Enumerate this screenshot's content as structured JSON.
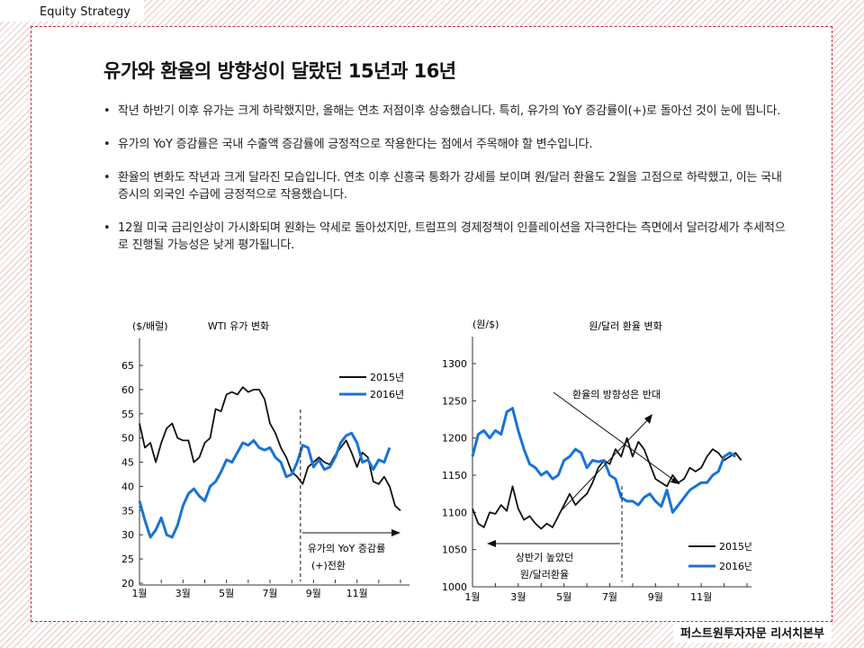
{
  "header": {
    "section": "Equity Strategy"
  },
  "footer": {
    "company": "퍼스트원투자자문 리서치본부"
  },
  "title": "유가와 환율의 방향성이 달랐던 15년과 16년",
  "bullets": [
    "작년 하반기 이후 유가는 크게 하락했지만, 올해는 연초 저점이후 상승했습니다. 특히, 유가의 YoY 증감률이(+)로 돌아선 것이 눈에 띕니다.",
    "유가의 YoY 증감률은 국내 수출액 증감률에 긍정적으로 작용한다는 점에서 주목해야 할 변수입니다.",
    "환율의 변화도 작년과 크게 달라진 모습입니다. 연초 이후 신흥국 통화가 강세를 보이며 원/달러 환율도 2월을 고점으로 하락했고, 이는 국내증시의 외국인 수급에 긍정적으로 작용했습니다.",
    "12월 미국 금리인상이 가시화되며 원화는 약세로 돌아섰지만, 트럼프의 경제정책이 인플레이션을 자극한다는 측면에서 달러강세가 추세적으로 진행될 가능성은 낮게 평가됩니다."
  ],
  "chart_data": [
    {
      "type": "line",
      "title": "WTI 유가 변화",
      "ylabel": "($/배럴)",
      "ylim": [
        20,
        65
      ],
      "yticks": [
        20,
        25,
        30,
        35,
        40,
        45,
        50,
        55,
        60,
        65
      ],
      "xticks": [
        "1월",
        "3월",
        "5월",
        "7월",
        "9월",
        "11월"
      ],
      "xlim": [
        0,
        12
      ],
      "annotation": {
        "line1": "유가의 YoY 증감률",
        "line2": "(+)전환",
        "x": 7.4
      },
      "series": [
        {
          "name": "2015년",
          "color": "#111111",
          "x": [
            0,
            0.25,
            0.5,
            0.75,
            1,
            1.25,
            1.5,
            1.75,
            2,
            2.25,
            2.5,
            2.75,
            3,
            3.25,
            3.5,
            3.75,
            4,
            4.25,
            4.5,
            4.75,
            5,
            5.25,
            5.5,
            5.75,
            6,
            6.25,
            6.5,
            6.75,
            7,
            7.25,
            7.5,
            7.75,
            8,
            8.25,
            8.5,
            8.75,
            9,
            9.25,
            9.5,
            9.75,
            10,
            10.25,
            10.5,
            10.75,
            11,
            11.25,
            11.5,
            11.75,
            12
          ],
          "values": [
            53,
            48,
            49,
            45,
            49,
            52,
            53,
            50,
            49.5,
            49.5,
            45,
            46,
            49,
            50,
            56,
            55.5,
            59,
            59.5,
            59,
            60.5,
            59.5,
            60,
            60,
            58,
            53,
            51,
            48,
            46,
            43,
            42,
            40.5,
            44,
            45,
            46,
            45,
            44.5,
            46.5,
            48,
            49.5,
            47,
            44,
            47,
            46,
            41,
            40.5,
            42,
            40,
            36,
            35
          ]
        },
        {
          "name": "2016년",
          "color": "#1a73d4",
          "x": [
            0,
            0.25,
            0.5,
            0.75,
            1,
            1.25,
            1.5,
            1.75,
            2,
            2.25,
            2.5,
            2.75,
            3,
            3.25,
            3.5,
            3.75,
            4,
            4.25,
            4.5,
            4.75,
            5,
            5.25,
            5.5,
            5.75,
            6,
            6.25,
            6.5,
            6.75,
            7,
            7.25,
            7.5,
            7.75,
            8,
            8.25,
            8.5,
            8.75,
            9,
            9.25,
            9.5,
            9.75,
            10,
            10.25,
            10.5,
            10.75,
            11,
            11.25,
            11.5
          ],
          "values": [
            37,
            33,
            29.5,
            31,
            33.5,
            30,
            29.5,
            32,
            36,
            38.5,
            39.5,
            38,
            37,
            40,
            41,
            43,
            45.5,
            45,
            47,
            49,
            48.5,
            49.5,
            48,
            47.5,
            48,
            46,
            45,
            42,
            42.5,
            45,
            48.5,
            48,
            44,
            45.5,
            43.5,
            44,
            46,
            49,
            50.5,
            51,
            49,
            45,
            45.5,
            43.5,
            45.5,
            45,
            48
          ]
        }
      ]
    },
    {
      "type": "line",
      "title": "원/달러 환율 변화",
      "ylabel": "(원/$)",
      "ylim": [
        1000,
        1300
      ],
      "yticks": [
        1000,
        1050,
        1100,
        1150,
        1200,
        1250,
        1300
      ],
      "xticks": [
        "1월",
        "3월",
        "5월",
        "7월",
        "9월",
        "11월"
      ],
      "xlim": [
        0,
        12
      ],
      "annotations": {
        "top": "환율의 방향성은 반대",
        "bottom_line1": "상반기 높았던",
        "bottom_line2": "원/달러환율"
      },
      "series": [
        {
          "name": "2015년",
          "color": "#111111",
          "x": [
            0,
            0.25,
            0.5,
            0.75,
            1,
            1.25,
            1.5,
            1.75,
            2,
            2.25,
            2.5,
            2.75,
            3,
            3.25,
            3.5,
            3.75,
            4,
            4.25,
            4.5,
            4.75,
            5,
            5.25,
            5.5,
            5.75,
            6,
            6.25,
            6.5,
            6.75,
            7,
            7.25,
            7.5,
            7.75,
            8,
            8.25,
            8.5,
            8.75,
            9,
            9.25,
            9.5,
            9.75,
            10,
            10.25,
            10.5,
            10.75,
            11,
            11.25,
            11.5,
            11.75
          ],
          "values": [
            1105,
            1085,
            1080,
            1100,
            1098,
            1110,
            1102,
            1135,
            1105,
            1090,
            1095,
            1085,
            1078,
            1085,
            1080,
            1095,
            1110,
            1125,
            1110,
            1118,
            1125,
            1140,
            1160,
            1170,
            1165,
            1185,
            1175,
            1200,
            1175,
            1195,
            1185,
            1165,
            1145,
            1140,
            1135,
            1150,
            1140,
            1145,
            1160,
            1155,
            1160,
            1175,
            1185,
            1180,
            1170,
            1175,
            1180,
            1170
          ]
        },
        {
          "name": "2016년",
          "color": "#1a73d4",
          "x": [
            0,
            0.25,
            0.5,
            0.75,
            1,
            1.25,
            1.5,
            1.75,
            2,
            2.25,
            2.5,
            2.75,
            3,
            3.25,
            3.5,
            3.75,
            4,
            4.25,
            4.5,
            4.75,
            5,
            5.25,
            5.5,
            5.75,
            6,
            6.25,
            6.5,
            6.75,
            7,
            7.25,
            7.5,
            7.75,
            8,
            8.25,
            8.5,
            8.75,
            9,
            9.25,
            9.5,
            9.75,
            10,
            10.25,
            10.5,
            10.75,
            11,
            11.25,
            11.5
          ],
          "values": [
            1175,
            1205,
            1210,
            1200,
            1210,
            1205,
            1235,
            1240,
            1210,
            1185,
            1165,
            1160,
            1150,
            1155,
            1145,
            1150,
            1170,
            1175,
            1185,
            1180,
            1160,
            1170,
            1168,
            1170,
            1150,
            1145,
            1120,
            1115,
            1115,
            1110,
            1120,
            1125,
            1115,
            1108,
            1130,
            1100,
            1110,
            1120,
            1130,
            1135,
            1140,
            1140,
            1150,
            1155,
            1175,
            1180,
            1175
          ]
        }
      ]
    }
  ]
}
